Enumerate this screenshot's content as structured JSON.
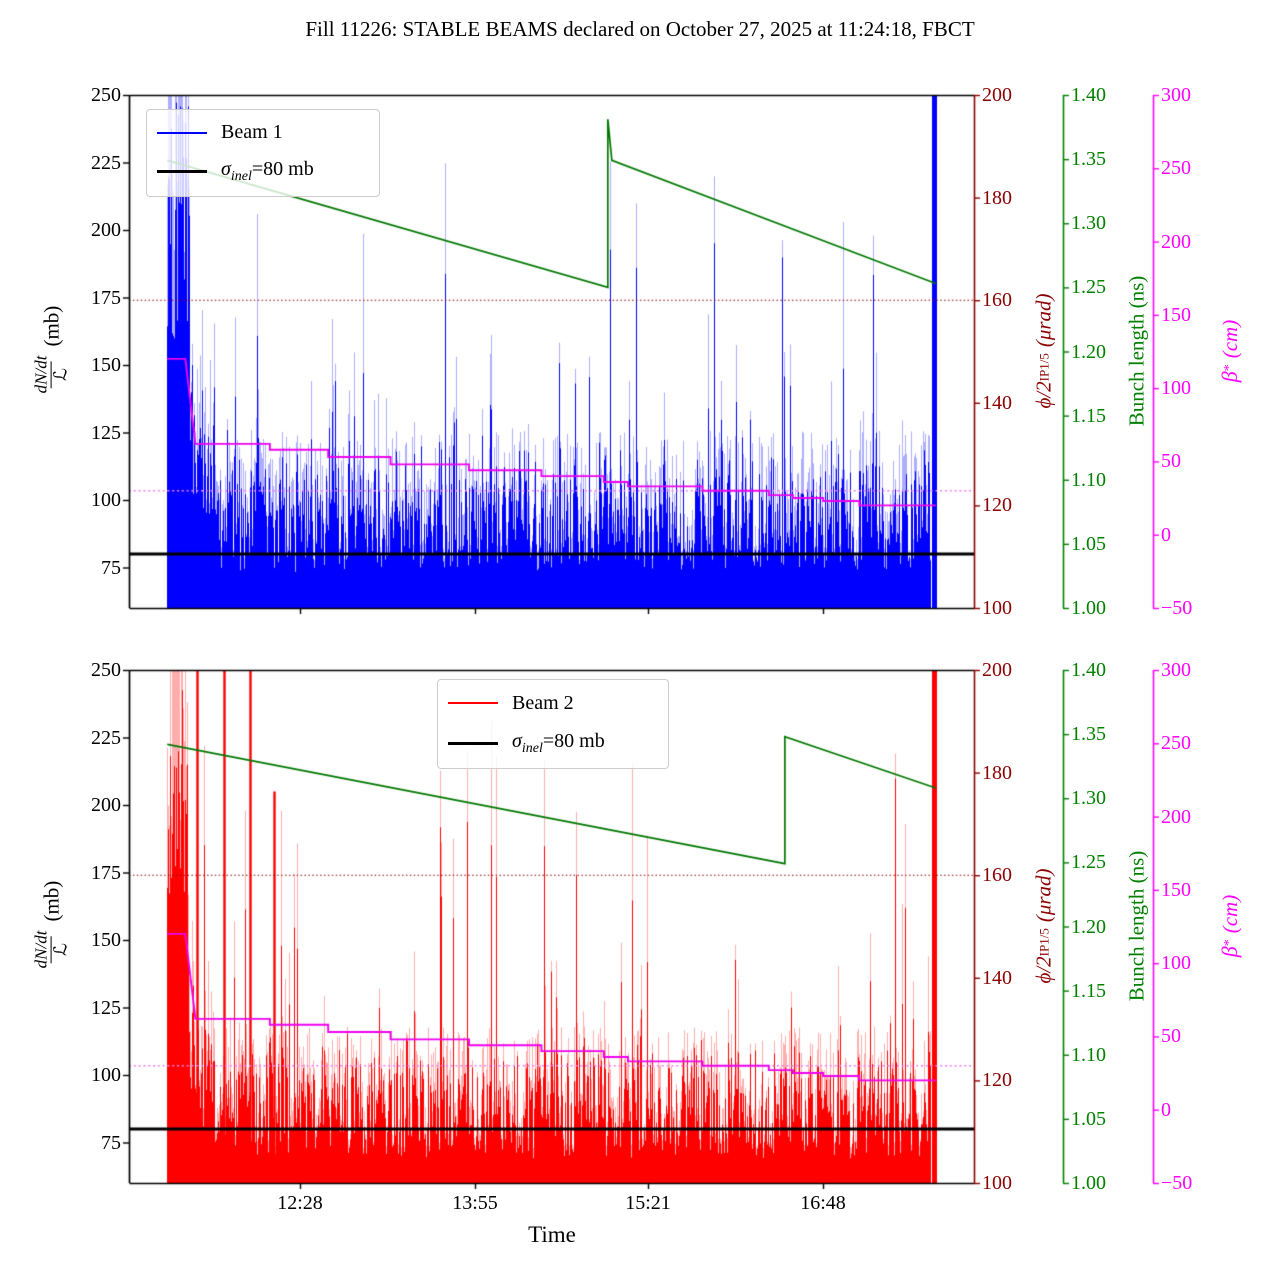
{
  "title": "Fill 11226: STABLE BEAMS declared on October 27, 2025 at 11:24:18, FBCT",
  "chart_data": {
    "type": "line",
    "title": "Fill 11226: STABLE BEAMS declared on October 27, 2025 at 11:24:18, FBCT",
    "x_axis": {
      "label": "Time",
      "tick_labels": [
        "12:28",
        "13:55",
        "15:21",
        "16:48"
      ],
      "range": [
        "11:03",
        "18:03"
      ]
    },
    "y_axes": {
      "rate": {
        "label_numerator": "dN/dt",
        "label_denominator": "ℒ",
        "label_unit": "(mb)",
        "color": "#000000",
        "range": [
          60,
          250
        ],
        "tick_values": [
          250,
          225,
          200,
          175,
          150,
          125,
          100,
          75
        ],
        "tick_labels": [
          "250",
          "225",
          "200",
          "175",
          "150",
          "125",
          "100",
          "75"
        ]
      },
      "crossing": {
        "label_main": "ϕ/2",
        "label_sub": "IP1/5",
        "label_unit": "(μrad)",
        "color": "#8b0000",
        "range": [
          100,
          200
        ],
        "tick_values": [
          200,
          180,
          160,
          140,
          120,
          100
        ],
        "tick_labels": [
          "200",
          "180",
          "160",
          "140",
          "120",
          "100"
        ]
      },
      "bunch": {
        "label": "Bunch length (ns)",
        "color": "#008000",
        "range": [
          1.0,
          1.4
        ],
        "tick_values": [
          1.4,
          1.35,
          1.3,
          1.25,
          1.2,
          1.15,
          1.1,
          1.05,
          1.0
        ],
        "tick_labels": [
          "1.40",
          "1.35",
          "1.30",
          "1.25",
          "1.20",
          "1.15",
          "1.10",
          "1.05",
          "1.00"
        ]
      },
      "beta": {
        "label_main": "β",
        "label_sup": "*",
        "label_unit": "(cm)",
        "color": "#ff00ff",
        "range": [
          -50,
          300
        ],
        "tick_values": [
          300,
          250,
          200,
          150,
          100,
          50,
          0,
          -50
        ],
        "tick_labels": [
          "300",
          "250",
          "200",
          "150",
          "100",
          "50",
          "0",
          "−50"
        ]
      }
    },
    "shared_series": {
      "sigma_inel_mb": 80,
      "crossing_half_angle_urad_dotted": 160,
      "beta_star_target_cm_dotted": 30,
      "beta_star_cm_steps": [
        [
          "11:22",
          120
        ],
        [
          "11:31",
          120
        ],
        [
          "11:36",
          62
        ],
        [
          "12:13",
          62
        ],
        [
          "12:13",
          58
        ],
        [
          "12:42",
          58
        ],
        [
          "12:42",
          53
        ],
        [
          "13:13",
          53
        ],
        [
          "13:13",
          48
        ],
        [
          "13:52",
          48
        ],
        [
          "13:52",
          44
        ],
        [
          "14:28",
          44
        ],
        [
          "14:28",
          40
        ],
        [
          "14:59",
          40
        ],
        [
          "14:59",
          36
        ],
        [
          "15:11",
          36
        ],
        [
          "15:11",
          33
        ],
        [
          "15:48",
          33
        ],
        [
          "15:48",
          30
        ],
        [
          "16:21",
          30
        ],
        [
          "16:21",
          27
        ],
        [
          "16:33",
          27
        ],
        [
          "16:33",
          25
        ],
        [
          "16:48",
          25
        ],
        [
          "16:48",
          23
        ],
        [
          "17:06",
          23
        ],
        [
          "17:06",
          20
        ],
        [
          "17:44",
          20
        ]
      ]
    },
    "subplots": [
      {
        "name": "beam1",
        "legend_beam_label": "Beam 1",
        "legend_sigma": {
          "prefix": "σ",
          "sub": "inel",
          "suffix": "=80 mb"
        },
        "beam_series": {
          "label": "Beam 1",
          "color": "#0000ff",
          "type": "noisy_scatter_band",
          "start": "11:22",
          "end": "17:43",
          "burst_end": "11:33",
          "settle_mean_mb": 97,
          "post_burst_mean_mb": 145,
          "band_floor_mb": 60,
          "clip_top_mb": 250,
          "spike_prob": 0.012,
          "tall_spikes": [],
          "end_spike": {
            "t": "17:43",
            "top_mb": 250
          },
          "seed": 11226
        },
        "bunch_length_ns": [
          [
            "11:22",
            1.349
          ],
          [
            "15:01",
            1.25
          ],
          [
            "15:01",
            1.381
          ],
          [
            "15:03",
            1.349
          ],
          [
            "17:44",
            1.253
          ]
        ]
      },
      {
        "name": "beam2",
        "legend_beam_label": "Beam 2",
        "legend_sigma": {
          "prefix": "σ",
          "sub": "inel",
          "suffix": "=80 mb"
        },
        "beam_series": {
          "label": "Beam 2",
          "color": "#ff0000",
          "type": "noisy_scatter_band",
          "start": "11:22",
          "end": "17:43",
          "burst_end": "11:32",
          "settle_mean_mb": 91,
          "post_burst_mean_mb": 140,
          "band_floor_mb": 60,
          "clip_top_mb": 250,
          "spike_prob": 0.02,
          "tall_spikes": [
            {
              "t": "11:37",
              "top_mb": 250
            },
            {
              "t": "11:50",
              "top_mb": 250
            },
            {
              "t": "12:03",
              "top_mb": 250
            },
            {
              "t": "12:15",
              "top_mb": 205
            }
          ],
          "end_spike": {
            "t": "17:43",
            "top_mb": 250
          },
          "seed": 2025
        },
        "bunch_length_ns": [
          [
            "11:22",
            1.342
          ],
          [
            "16:29",
            1.249
          ],
          [
            "16:29",
            1.348
          ],
          [
            "17:44",
            1.308
          ]
        ]
      }
    ],
    "style": {
      "beam1_color": "#0000ff",
      "beam2_color": "#ff0000",
      "sigma_color": "#000000",
      "crossing_color": "#8b0000",
      "bunch_color": "#007800",
      "beta_step_color": "#ee00ee",
      "beta_dotted_color": "#f07ef0",
      "grid": "off",
      "legend_positions": [
        "upper-left",
        "upper-center"
      ]
    }
  }
}
